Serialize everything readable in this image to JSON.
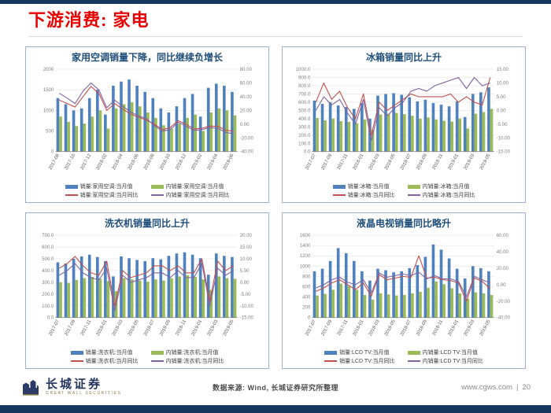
{
  "header": {
    "title": "下游消费: 家电"
  },
  "theme": {
    "accent_navy": "#17375e",
    "title_red": "#e80000",
    "bar_blue": "#4f81bd",
    "bar_green": "#9bbb59",
    "line_red": "#c0504d",
    "line_purple": "#8064a2"
  },
  "footer": {
    "source_text": "数据来源: Wind, 长城证券研究所整理",
    "website": "www.cgws.com",
    "separator": "|",
    "page_number": "20",
    "logo_cn": "长城证券",
    "logo_en": "GREAT WALL SECURITIES"
  },
  "chart_data": [
    {
      "type": "bar",
      "title": "家用空调销量下降，同比继续负增长",
      "tick_every": 2,
      "left_axis": {
        "min": 0,
        "max": 2000,
        "step": 500,
        "format": "int"
      },
      "right_axis": {
        "min": -40,
        "max": 80,
        "step": 20,
        "format": "2dp"
      },
      "months": [
        "2017-08",
        "2017-09",
        "2017-10",
        "2017-11",
        "2017-12",
        "2018-01",
        "2018-02",
        "2018-03",
        "2018-04",
        "2018-05",
        "2018-06",
        "2018-07",
        "2018-08",
        "2018-09",
        "2018-10",
        "2018-11",
        "2018-12",
        "2019-01",
        "2019-02",
        "2019-03",
        "2019-04",
        "2019-05",
        "2019-06"
      ],
      "series": [
        {
          "name": "销量:家用空调:当月值",
          "type": "bar",
          "axis": "left",
          "color": "#4f81bd",
          "values": [
            1300,
            1150,
            1000,
            1050,
            1300,
            1500,
            900,
            1600,
            1700,
            1750,
            1600,
            1450,
            1300,
            1050,
            950,
            1100,
            1300,
            1400,
            850,
            1550,
            1650,
            1600,
            1450
          ]
        },
        {
          "name": "销量:家用空调:当月同比",
          "type": "line",
          "axis": "right",
          "color": "#c0504d",
          "values": [
            35,
            30,
            25,
            40,
            55,
            45,
            20,
            30,
            22,
            15,
            10,
            6,
            0,
            -8,
            -5,
            5,
            0,
            -7,
            -6,
            -3,
            -3,
            -9,
            -10
          ]
        },
        {
          "name": "内销量:家用空调:当月值",
          "type": "bar",
          "axis": "left",
          "color": "#9bbb59",
          "values": [
            850,
            720,
            620,
            680,
            850,
            1000,
            560,
            1050,
            1150,
            1200,
            1100,
            950,
            820,
            640,
            560,
            680,
            820,
            900,
            500,
            950,
            1050,
            1000,
            880
          ]
        },
        {
          "name": "内销量:家用空调:当月同比",
          "type": "line",
          "axis": "right",
          "color": "#8064a2",
          "values": [
            45,
            38,
            30,
            48,
            60,
            50,
            24,
            35,
            26,
            18,
            12,
            8,
            -2,
            -10,
            -8,
            3,
            -3,
            -9,
            -8,
            -5,
            -6,
            -12,
            -14
          ]
        }
      ]
    },
    {
      "type": "bar",
      "title": "冰箱销量同比上升",
      "tick_every": 2,
      "left_axis": {
        "min": 0,
        "max": 1000,
        "step": 100,
        "format": "1dp"
      },
      "right_axis": {
        "min": -15,
        "max": 15,
        "step": 5,
        "format": "2dp"
      },
      "months": [
        "2017-07",
        "2017-08",
        "2017-09",
        "2017-10",
        "2017-11",
        "2017-12",
        "2018-01",
        "2018-02",
        "2018-03",
        "2018-04",
        "2018-05",
        "2018-06",
        "2018-07",
        "2018-08",
        "2018-09",
        "2018-10",
        "2018-11",
        "2018-12",
        "2019-01",
        "2019-02",
        "2019-03",
        "2019-04",
        "2019-05"
      ],
      "series": [
        {
          "name": "销量:冰箱:当月值",
          "type": "bar",
          "axis": "left",
          "color": "#4f81bd",
          "values": [
            620,
            580,
            600,
            560,
            540,
            520,
            590,
            400,
            680,
            700,
            710,
            690,
            660,
            610,
            630,
            590,
            570,
            550,
            610,
            420,
            700,
            720,
            780
          ]
        },
        {
          "name": "销量:冰箱:当月同比",
          "type": "line",
          "axis": "right",
          "color": "#c0504d",
          "values": [
            3,
            10,
            4,
            7,
            1,
            -3,
            6,
            -9,
            3,
            0,
            2,
            4,
            6,
            5,
            5,
            5,
            5,
            6,
            3,
            5,
            3,
            2,
            12
          ]
        },
        {
          "name": "内销量:冰箱:当月值",
          "type": "bar",
          "axis": "left",
          "color": "#9bbb59",
          "values": [
            410,
            380,
            400,
            370,
            360,
            345,
            390,
            265,
            450,
            460,
            470,
            455,
            435,
            400,
            415,
            390,
            375,
            365,
            400,
            280,
            460,
            480,
            520
          ]
        },
        {
          "name": "内销量:冰箱:当月同比",
          "type": "line",
          "axis": "right",
          "color": "#8064a2",
          "values": [
            0,
            5,
            2,
            4,
            -1,
            -5,
            4,
            -11,
            1,
            -2,
            1,
            3,
            7,
            8,
            7,
            9,
            10,
            11,
            12,
            8,
            12,
            9,
            10
          ]
        }
      ]
    },
    {
      "type": "bar",
      "title": "洗衣机销量同比上升",
      "tick_every": 2,
      "left_axis": {
        "min": 0,
        "max": 700,
        "step": 100,
        "format": "1dp"
      },
      "right_axis": {
        "min": -15,
        "max": 20,
        "step": 5,
        "format": "2dp"
      },
      "months": [
        "2017-07",
        "2017-08",
        "2017-09",
        "2017-10",
        "2017-11",
        "2017-12",
        "2018-01",
        "2018-02",
        "2018-03",
        "2018-04",
        "2018-05",
        "2018-06",
        "2018-07",
        "2018-08",
        "2018-09",
        "2018-10",
        "2018-11",
        "2018-12",
        "2019-01",
        "2019-02",
        "2019-03",
        "2019-04",
        "2019-05"
      ],
      "series": [
        {
          "name": "销量:洗衣机:当月值",
          "type": "bar",
          "axis": "left",
          "color": "#4f81bd",
          "values": [
            470,
            460,
            500,
            520,
            535,
            515,
            480,
            350,
            520,
            505,
            490,
            480,
            505,
            495,
            525,
            545,
            555,
            535,
            505,
            365,
            545,
            525,
            515
          ]
        },
        {
          "name": "销量:洗衣机:当月同比",
          "type": "line",
          "axis": "right",
          "color": "#c0504d",
          "values": [
            6,
            8,
            11,
            7,
            4,
            3,
            9,
            -10,
            5,
            2,
            3,
            4,
            7,
            7,
            5,
            7,
            4,
            4,
            10,
            -8,
            9,
            5,
            7
          ]
        },
        {
          "name": "内销量:洗衣机:当月值",
          "type": "bar",
          "axis": "left",
          "color": "#9bbb59",
          "values": [
            300,
            295,
            320,
            335,
            345,
            330,
            310,
            225,
            335,
            325,
            315,
            305,
            325,
            315,
            335,
            350,
            360,
            345,
            325,
            235,
            350,
            335,
            330
          ]
        },
        {
          "name": "内销量:洗衣机:当月同比",
          "type": "line",
          "axis": "right",
          "color": "#8064a2",
          "values": [
            3,
            5,
            8,
            4,
            2,
            1,
            6,
            -12,
            3,
            0,
            1,
            2,
            4,
            4,
            2,
            5,
            2,
            2,
            8,
            -10,
            6,
            3,
            5
          ]
        }
      ]
    },
    {
      "type": "bar",
      "title": "液晶电视销量同比略升",
      "tick_every": 2,
      "left_axis": {
        "min": 0,
        "max": 1600,
        "step": 200,
        "format": "int"
      },
      "right_axis": {
        "min": -40,
        "max": 60,
        "step": 20,
        "format": "2dp"
      },
      "months": [
        "2017-07",
        "2017-08",
        "2017-09",
        "2017-10",
        "2017-11",
        "2017-12",
        "2018-01",
        "2018-02",
        "2018-03",
        "2018-04",
        "2018-05",
        "2018-06",
        "2018-07",
        "2018-08",
        "2018-09",
        "2018-10",
        "2018-11",
        "2018-12",
        "2019-01",
        "2019-02",
        "2019-03",
        "2019-04",
        "2019-05"
      ],
      "series": [
        {
          "name": "销量:LCD TV:当月值",
          "type": "bar",
          "axis": "left",
          "color": "#4f81bd",
          "values": [
            900,
            950,
            1100,
            1350,
            1250,
            1100,
            900,
            720,
            950,
            920,
            880,
            900,
            960,
            1020,
            1180,
            1420,
            1320,
            1150,
            950,
            760,
            1000,
            960,
            900
          ]
        },
        {
          "name": "销量:LCD TV:当月同比",
          "type": "line",
          "axis": "right",
          "color": "#c0504d",
          "values": [
            -8,
            -4,
            2,
            6,
            0,
            -6,
            2,
            -14,
            12,
            6,
            8,
            10,
            9,
            35,
            8,
            9,
            6,
            5,
            2,
            -20,
            8,
            4,
            -5
          ]
        },
        {
          "name": "内销量:LCD TV:当月值",
          "type": "bar",
          "axis": "left",
          "color": "#9bbb59",
          "values": [
            430,
            460,
            540,
            660,
            610,
            540,
            440,
            350,
            470,
            450,
            430,
            440,
            470,
            500,
            580,
            700,
            650,
            570,
            470,
            370,
            490,
            470,
            440
          ]
        },
        {
          "name": "内销量:LCD TV:当月同比",
          "type": "line",
          "axis": "right",
          "color": "#8064a2",
          "values": [
            -4,
            0,
            6,
            9,
            3,
            0,
            6,
            -10,
            14,
            9,
            11,
            13,
            11,
            15,
            7,
            11,
            7,
            7,
            4,
            -15,
            10,
            6,
            2
          ]
        }
      ]
    }
  ]
}
